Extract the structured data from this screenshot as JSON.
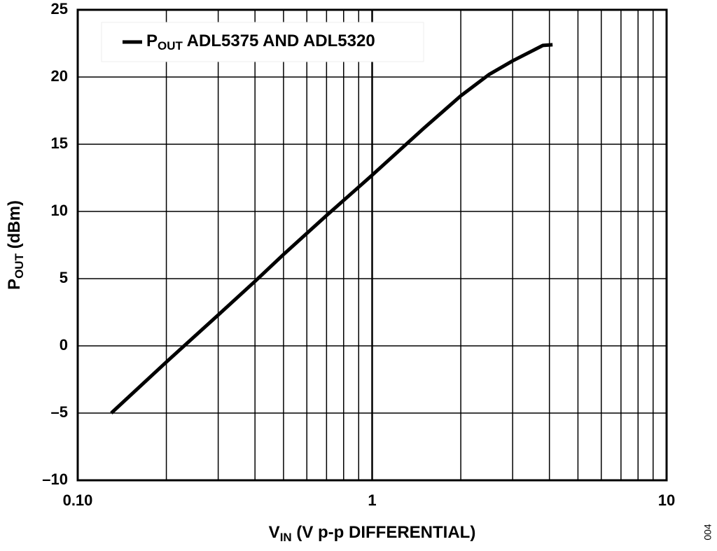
{
  "chart_data": {
    "type": "line",
    "x_label": {
      "main": "V",
      "sub": "IN",
      "rest": " (V p-p DIFFERENTIAL)"
    },
    "y_label": {
      "main": "P",
      "sub": "OUT",
      "rest": "  (dBm)"
    },
    "figure_code": "004",
    "x_log": true,
    "grid": true,
    "legend": "top-left",
    "xlim": [
      0.1,
      10
    ],
    "xticks": [
      {
        "value": 0.1,
        "label": "0.10"
      },
      1,
      10
    ],
    "minor_xticks": [
      0.2,
      0.3,
      0.4,
      0.5,
      0.6,
      0.7,
      0.8,
      0.9,
      2,
      3,
      4,
      5,
      6,
      7,
      8,
      9
    ],
    "ylim": [
      -10,
      25
    ],
    "yticks": [
      {
        "value": -10,
        "label": "–10"
      },
      {
        "value": -5,
        "label": "–5"
      },
      0,
      5,
      10,
      15,
      20,
      25
    ],
    "series": [
      {
        "name": {
          "main": "P",
          "sub": "OUT",
          "rest": " ADL5375 AND ADL5320"
        },
        "color": "#000000",
        "x": [
          0.13,
          0.2,
          0.3,
          0.4,
          0.5,
          0.7,
          1,
          1.5,
          2,
          2.5,
          3,
          3.5,
          3.8,
          4.1
        ],
        "values": [
          -5,
          -1.2,
          2.3,
          4.8,
          6.8,
          9.7,
          12.7,
          16.2,
          18.6,
          20.2,
          21.2,
          21.95,
          22.35,
          22.4
        ]
      }
    ]
  }
}
